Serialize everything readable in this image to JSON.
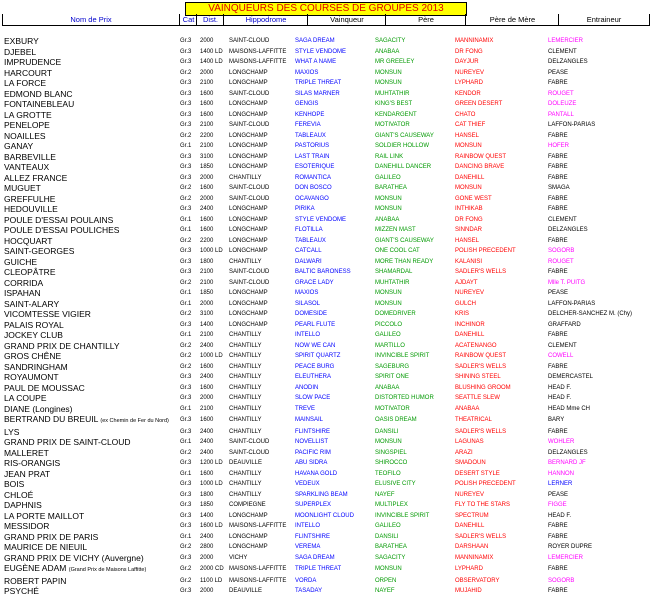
{
  "title": "VAINQUEURS DES COURSES DE GROUPES 2013",
  "headers": {
    "prix": "Nom de Prix",
    "cat": "Cat",
    "dist": "Dist.",
    "hippodrome": "Hippodrome",
    "vainqueur": "Vainqueur",
    "pere": "Père",
    "mere": "Père de Mère",
    "entraineur": "Entraineur"
  },
  "colors": {
    "title_bg": "#ffff00",
    "title_text": "#dd0000",
    "vainqueur": "#0000ff",
    "pere": "#009900",
    "mere": "#ff0000",
    "entraineur_highlight": "#ff00ff"
  },
  "rows": [
    {
      "prix": "EXBURY",
      "cat": "Gr.3",
      "dist": "2000",
      "hip": "SAINT-CLOUD",
      "vain": "SAGA DREAM",
      "pere": "SAGACITY",
      "mere": "MANNINAMIX",
      "ent": "LEMERCIER",
      "hl": "mag"
    },
    {
      "prix": "DJEBEL",
      "cat": "Gr.3",
      "dist": "1400 LD",
      "hip": "MAISONS-LAFFITTE",
      "vain": "STYLE VENDOME",
      "pere": "ANABAA",
      "mere": "DR FONG",
      "ent": "CLEMENT",
      "hl": ""
    },
    {
      "prix": "IMPRUDENCE",
      "cat": "Gr.3",
      "dist": "1400 LD",
      "hip": "MAISONS-LAFFITTE",
      "vain": "WHAT A NAME",
      "pere": "MR GREELEY",
      "mere": "DAYJUR",
      "ent": "DELZANGLES",
      "hl": ""
    },
    {
      "prix": "HARCOURT",
      "cat": "Gr.2",
      "dist": "2000",
      "hip": "LONGCHAMP",
      "vain": "MAXIOS",
      "pere": "MONSUN",
      "mere": "NUREYEV",
      "ent": "PEASE",
      "hl": ""
    },
    {
      "prix": "LA FORCE",
      "cat": "Gr.3",
      "dist": "2100",
      "hip": "LONGCHAMP",
      "vain": "TRIPLE THREAT",
      "pere": "MONSUN",
      "mere": "LYPHARD",
      "ent": "FABRE",
      "hl": ""
    },
    {
      "prix": "EDMOND BLANC",
      "cat": "Gr.3",
      "dist": "1600",
      "hip": "SAINT-CLOUD",
      "vain": "SILAS MARNER",
      "pere": "MUHTATHIR",
      "mere": "KENDOR",
      "ent": "ROUGET",
      "hl": "mag"
    },
    {
      "prix": "FONTAINEBLEAU",
      "cat": "Gr.3",
      "dist": "1600",
      "hip": "LONGCHAMP",
      "vain": "GENGIS",
      "pere": "KING'S BEST",
      "mere": "GREEN DESERT",
      "ent": "DOLEUZE",
      "hl": "mag"
    },
    {
      "prix": "LA GROTTE",
      "cat": "Gr.3",
      "dist": "1600",
      "hip": "LONGCHAMP",
      "vain": "KENHOPE",
      "pere": "KENDARGENT",
      "mere": "CHATO",
      "ent": "PANTALL",
      "hl": "mag"
    },
    {
      "prix": "PENELOPE",
      "cat": "Gr.3",
      "dist": "2100",
      "hip": "SAINT-CLOUD",
      "vain": "FEREVIA",
      "pere": "MOTIVATOR",
      "mere": "CAT THIEF",
      "ent": "LAFFON-PARIAS",
      "hl": ""
    },
    {
      "prix": "NOAILLES",
      "cat": "Gr.2",
      "dist": "2200",
      "hip": "LONGCHAMP",
      "vain": "TABLEAUX",
      "pere": "GIANT'S CAUSEWAY",
      "mere": "HANSEL",
      "ent": "FABRE",
      "hl": ""
    },
    {
      "prix": "GANAY",
      "cat": "Gr.1",
      "dist": "2100",
      "hip": "LONGCHAMP",
      "vain": "PASTORIUS",
      "pere": "SOLDIER HOLLOW",
      "mere": "MONSUN",
      "ent": "HOFER",
      "hl": "mag"
    },
    {
      "prix": "BARBEVILLE",
      "cat": "Gr.3",
      "dist": "3100",
      "hip": "LONGCHAMP",
      "vain": "LAST TRAIN",
      "pere": "RAIL LINK",
      "mere": "RAINBOW QUEST",
      "ent": "FABRE",
      "hl": ""
    },
    {
      "prix": "VANTEAUX",
      "cat": "Gr.3",
      "dist": "1850",
      "hip": "LONGCHAMP",
      "vain": "ESOTERIQUE",
      "pere": "DANEHILL DANCER",
      "mere": "DANCING BRAVE",
      "ent": "FABRE",
      "hl": ""
    },
    {
      "prix": "ALLEZ FRANCE",
      "cat": "Gr.3",
      "dist": "2000",
      "hip": "CHANTILLY",
      "vain": "ROMANTICA",
      "pere": "GALILEO",
      "mere": "DANEHILL",
      "ent": "FABRE",
      "hl": ""
    },
    {
      "prix": "MUGUET",
      "cat": "Gr.2",
      "dist": "1600",
      "hip": "SAINT-CLOUD",
      "vain": "DON BOSCO",
      "pere": "BARATHEA",
      "mere": "MONSUN",
      "ent": "SMAGA",
      "hl": ""
    },
    {
      "prix": "GREFFULHE",
      "cat": "Gr.2",
      "dist": "2000",
      "hip": "SAINT-CLOUD",
      "vain": "OCAVANGO",
      "pere": "MONSUN",
      "mere": "GONE WEST",
      "ent": "FABRE",
      "hl": ""
    },
    {
      "prix": "HEDOUVILLE",
      "cat": "Gr.3",
      "dist": "2400",
      "hip": "LONGCHAMP",
      "vain": "PIRIKA",
      "pere": "MONSUN",
      "mere": "INTHIKAB",
      "ent": "FABRE",
      "hl": ""
    },
    {
      "prix": "POULE D'ESSAI POULAINS",
      "cat": "Gr.1",
      "dist": "1600",
      "hip": "LONGCHAMP",
      "vain": "STYLE VENDOME",
      "pere": "ANABAA",
      "mere": "DR FONG",
      "ent": "CLEMENT",
      "hl": ""
    },
    {
      "prix": "POULE D'ESSAI POULICHES",
      "cat": "Gr.1",
      "dist": "1600",
      "hip": "LONGCHAMP",
      "vain": "FLOTILLA",
      "pere": "MIZZEN MAST",
      "mere": "SINNDAR",
      "ent": "DELZANGLES",
      "hl": ""
    },
    {
      "prix": "HOCQUART",
      "cat": "Gr.2",
      "dist": "2200",
      "hip": "LONGCHAMP",
      "vain": "TABLEAUX",
      "pere": "GIANT'S CAUSEWAY",
      "mere": "HANSEL",
      "ent": "FABRE",
      "hl": ""
    },
    {
      "prix": "SAINT-GEORGES",
      "cat": "Gr.3",
      "dist": "1000 LD",
      "hip": "LONGCHAMP",
      "vain": "CATCALL",
      "pere": "ONE COOL CAT",
      "mere": "POLISH PRECEDENT",
      "ent": "SOGORB",
      "hl": "mag"
    },
    {
      "prix": "GUICHE",
      "cat": "Gr.3",
      "dist": "1800",
      "hip": "CHANTILLY",
      "vain": "DALWARI",
      "pere": "MORE THAN READY",
      "mere": "KALANISI",
      "ent": "ROUGET",
      "hl": "mag"
    },
    {
      "prix": "CLEOPÂTRE",
      "cat": "Gr.3",
      "dist": "2100",
      "hip": "SAINT-CLOUD",
      "vain": "BALTIC BARONESS",
      "pere": "SHAMARDAL",
      "mere": "SADLER'S WELLS",
      "ent": "FABRE",
      "hl": ""
    },
    {
      "prix": "CORRIDA",
      "cat": "Gr.2",
      "dist": "2100",
      "hip": "SAINT-CLOUD",
      "vain": "GRACE LADY",
      "pere": "MUHTATHIR",
      "mere": "AJDAYT",
      "ent": "Mlle T. PUITG",
      "hl": "mag"
    },
    {
      "prix": "ISPAHAN",
      "cat": "Gr.1",
      "dist": "1850",
      "hip": "LONGCHAMP",
      "vain": "MAXIOS",
      "pere": "MONSUN",
      "mere": "NUREYEV",
      "ent": "PEASE",
      "hl": ""
    },
    {
      "prix": "SAINT-ALARY",
      "cat": "Gr.1",
      "dist": "2000",
      "hip": "LONGCHAMP",
      "vain": "SILASOL",
      "pere": "MONSUN",
      "mere": "GULCH",
      "ent": "LAFFON-PARIAS",
      "hl": ""
    },
    {
      "prix": "VICOMTESSE VIGIER",
      "cat": "Gr.2",
      "dist": "3100",
      "hip": "LONGCHAMP",
      "vain": "DOMESIDE",
      "pere": "DOMEDRIVER",
      "mere": "KRIS",
      "ent": "DELCHER-SANCHEZ M. (Chy)",
      "hl": ""
    },
    {
      "prix": "PALAIS ROYAL",
      "cat": "Gr.3",
      "dist": "1400",
      "hip": "LONGCHAMP",
      "vain": "PEARL FLUTE",
      "pere": "PICCOLO",
      "mere": "INCHINOR",
      "ent": "GRAFFARD",
      "hl": ""
    },
    {
      "prix": "JOCKEY CLUB",
      "cat": "Gr.1",
      "dist": "2100",
      "hip": "CHANTILLY",
      "vain": "INTELLO",
      "pere": "GALILEO",
      "mere": "DANEHILL",
      "ent": "FABRE",
      "hl": ""
    },
    {
      "prix": "GRAND PRIX DE CHANTILLY",
      "cat": "Gr.2",
      "dist": "2400",
      "hip": "CHANTILLY",
      "vain": "NOW WE CAN",
      "pere": "MARTILLO",
      "mere": "ACATENANGO",
      "ent": "CLEMENT",
      "hl": ""
    },
    {
      "prix": "GROS CHÊNE",
      "cat": "Gr.2",
      "dist": "1000 LD",
      "hip": "CHANTILLY",
      "vain": "SPIRIT QUARTZ",
      "pere": "INVINCIBLE SPIRIT",
      "mere": "RAINBOW QUEST",
      "ent": "COWELL",
      "hl": "mag"
    },
    {
      "prix": "SANDRINGHAM",
      "cat": "Gr.2",
      "dist": "1600",
      "hip": "CHANTILLY",
      "vain": "PEACE BURG",
      "pere": "SAGEBURG",
      "mere": "SADLER'S WELLS",
      "ent": "FABRE",
      "hl": ""
    },
    {
      "prix": "ROYAUMONT",
      "cat": "Gr.3",
      "dist": "2400",
      "hip": "CHANTILLY",
      "vain": "ELEUTHERA",
      "pere": "SPIRIT ONE",
      "mere": "SHINING STEEL",
      "ent": "DEMERCASTEL",
      "hl": ""
    },
    {
      "prix": "PAUL DE MOUSSAC",
      "cat": "Gr.3",
      "dist": "1600",
      "hip": "CHANTILLY",
      "vain": "ANODIN",
      "pere": "ANABAA",
      "mere": "BLUSHING GROOM",
      "ent": "HEAD F.",
      "hl": ""
    },
    {
      "prix": "LA COUPE",
      "cat": "Gr.3",
      "dist": "2000",
      "hip": "CHANTILLY",
      "vain": "SLOW PACE",
      "pere": "DISTORTED HUMOR",
      "mere": "SEATTLE SLEW",
      "ent": "HEAD F.",
      "hl": ""
    },
    {
      "prix": "DIANE (Longines)",
      "cat": "Gr.1",
      "dist": "2100",
      "hip": "CHANTILLY",
      "vain": "TREVE",
      "pere": "MOTIVATOR",
      "mere": "ANABAA",
      "ent": "HEAD Mme CH",
      "hl": ""
    },
    {
      "prix": "BERTRAND DU BREUIL",
      "note": "(ex Chemin de Fer du Nord)",
      "cat": "Gr.3",
      "dist": "1600",
      "hip": "CHANTILLY",
      "vain": "MAINSAIL",
      "pere": "OASIS DREAM",
      "mere": "THEATRICAL",
      "ent": "BARY",
      "hl": ""
    },
    {
      "prix": "LYS",
      "cat": "Gr.3",
      "dist": "2400",
      "hip": "CHANTILLY",
      "vain": "FLINTSHIRE",
      "pere": "DANSILI",
      "mere": "SADLER'S WELLS",
      "ent": "FABRE",
      "hl": ""
    },
    {
      "prix": "GRAND PRIX DE SAINT-CLOUD",
      "cat": "Gr.1",
      "dist": "2400",
      "hip": "SAINT-CLOUD",
      "vain": "NOVELLIST",
      "pere": "MONSUN",
      "mere": "LAGUNAS",
      "ent": "WOHLER",
      "hl": "mag"
    },
    {
      "prix": "MALLERET",
      "cat": "Gr.2",
      "dist": "2400",
      "hip": "SAINT-CLOUD",
      "vain": "PACIFIC RIM",
      "pere": "SINGSPIEL",
      "mere": "ARAZI",
      "ent": "DELZANGLES",
      "hl": ""
    },
    {
      "prix": "RIS-ORANGIS",
      "cat": "Gr.3",
      "dist": "1200 LD",
      "hip": "DEAUVILLE",
      "vain": "ABU SIDRA",
      "pere": "SHIROCCO",
      "mere": "SMADOUN",
      "ent": "BERNARD JF",
      "hl": "mag"
    },
    {
      "prix": "JEAN PRAT",
      "cat": "Gr.1",
      "dist": "1600",
      "hip": "CHANTILLY",
      "vain": "HAVANA GOLD",
      "pere": "TEOFILO",
      "mere": "DESERT STYLE",
      "ent": "HANNON",
      "hl": "mag"
    },
    {
      "prix": "BOIS",
      "cat": "Gr.3",
      "dist": "1000 LD",
      "hip": "CHANTILLY",
      "vain": "VEDEUX",
      "pere": "ELUSIVE CITY",
      "mere": "POLISH PRECEDENT",
      "ent": "LERNER",
      "hl": "blu"
    },
    {
      "prix": "CHLOÉ",
      "cat": "Gr.3",
      "dist": "1800",
      "hip": "CHANTILLY",
      "vain": "SPARKLING BEAM",
      "pere": "NAYEF",
      "mere": "NUREYEV",
      "ent": "PEASE",
      "hl": ""
    },
    {
      "prix": "DAPHNIS",
      "cat": "Gr.3",
      "dist": "1850",
      "hip": "COMPIEGNE",
      "vain": "SUPERPLEX",
      "pere": "MULTIPLEX",
      "mere": "FLY TO THE STARS",
      "ent": "FIGGE",
      "hl": "mag"
    },
    {
      "prix": "LA PORTE MAILLOT",
      "cat": "Gr.3",
      "dist": "1400",
      "hip": "LONGCHAMP",
      "vain": "MOONLIGHT CLOUD",
      "pere": "INVINCIBLE SPIRIT",
      "mere": "SPECTRUM",
      "ent": "HEAD F.",
      "hl": ""
    },
    {
      "prix": "MESSIDOR",
      "cat": "Gr.3",
      "dist": "1600 LD",
      "hip": "MAISONS-LAFFITTE",
      "vain": "INTELLO",
      "pere": "GALILEO",
      "mere": "DANEHILL",
      "ent": "FABRE",
      "hl": ""
    },
    {
      "prix": "GRAND PRIX DE PARIS",
      "cat": "Gr.1",
      "dist": "2400",
      "hip": "LONGCHAMP",
      "vain": "FLINTSHIRE",
      "pere": "DANSILI",
      "mere": "SADLER'S WELLS",
      "ent": "FABRE",
      "hl": ""
    },
    {
      "prix": "MAURICE DE NIEUIL",
      "cat": "Gr.2",
      "dist": "2800",
      "hip": "LONGCHAMP",
      "vain": "VEREMA",
      "pere": "BARATHEA",
      "mere": "DARSHAAN",
      "ent": "ROYER DUPRE",
      "hl": ""
    },
    {
      "prix": "GRAND PRIX DE VICHY (Auvergne)",
      "cat": "Gr.3",
      "dist": "2000",
      "hip": "VICHY",
      "vain": "SAGA DREAM",
      "pere": "SAGACITY",
      "mere": "MANNINAMIX",
      "ent": "LEMERCIER",
      "hl": "mag"
    },
    {
      "prix": "EUGÈNE ADAM",
      "note": "(Grand Prix de Maisons Laffitte)",
      "cat": "Gr.2",
      "dist": "2000 CD",
      "hip": "MAISONS-LAFFITTE",
      "vain": "TRIPLE THREAT",
      "pere": "MONSUN",
      "mere": "LYPHARD",
      "ent": "FABRE",
      "hl": ""
    },
    {
      "prix": "ROBERT PAPIN",
      "cat": "Gr.2",
      "dist": "1100 LD",
      "hip": "MAISONS-LAFFITTE",
      "vain": "VORDA",
      "pere": "ORPEN",
      "mere": "OBSERVATORY",
      "ent": "SOGORB",
      "hl": "mag"
    },
    {
      "prix": "PSYCHÉ",
      "cat": "Gr.3",
      "dist": "2000",
      "hip": "DEAUVILLE",
      "vain": "TASADAY",
      "pere": "NAYEF",
      "mere": "MUJAHID",
      "ent": "FABRE",
      "hl": ""
    }
  ]
}
